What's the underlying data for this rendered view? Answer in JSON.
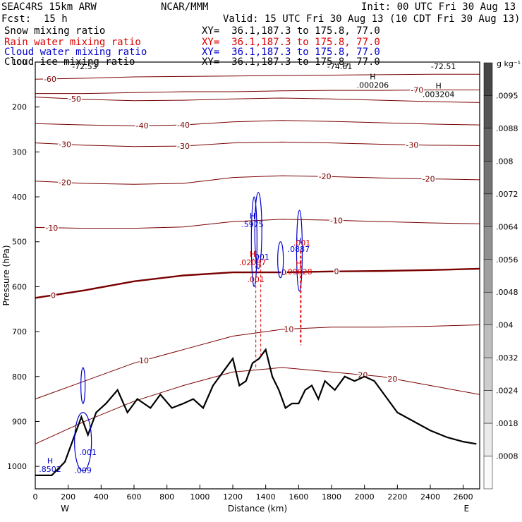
{
  "header": {
    "model": "SEAC4RS 15km ARW",
    "center": "NCAR/MMM",
    "init": "Init: 00 UTC Fri 30 Aug 13",
    "fcst_label": "Fcst:",
    "fcst_value": "15 h",
    "valid": "Valid: 15 UTC Fri 30 Aug 13 (10 CDT Fri 30 Aug 13)"
  },
  "legend": [
    {
      "name": "Snow mixing ratio",
      "xy": "XY=  36.1,187.3 to 175.8, 77.0",
      "color": "#000000"
    },
    {
      "name": "Rain water mixing ratio",
      "xy": "XY=  36.1,187.3 to 175.8, 77.0",
      "color": "#dd0000"
    },
    {
      "name": "Cloud water mixing ratio",
      "xy": "XY=  36.1,187.3 to 175.8, 77.0",
      "color": "#0000cc"
    },
    {
      "name": "Cloud ice mixing ratio",
      "xy": "XY=  36.1,187.3 to 175.8, 77.0",
      "color": "#000000"
    }
  ],
  "colorbar": {
    "unit": "g kg⁻¹",
    "labels": [
      ".0095",
      ".0088",
      ".008",
      ".0072",
      ".0064",
      ".0056",
      ".0048",
      ".004",
      ".0032",
      ".0024",
      ".0018",
      ".0008"
    ]
  },
  "chart_data": {
    "type": "contour-cross-section",
    "xlabel": "Distance (km)",
    "ylabel": "Pressure (hPa)",
    "x_ticks": [
      0,
      200,
      400,
      600,
      800,
      1000,
      1200,
      1400,
      1600,
      1800,
      2000,
      2200,
      2400,
      2600
    ],
    "y_ticks": [
      100,
      200,
      300,
      400,
      500,
      600,
      700,
      800,
      900,
      1000
    ],
    "xlim": [
      0,
      2700
    ],
    "ylim": [
      1050,
      100
    ],
    "x_end_labels": {
      "left": "W",
      "right": "E"
    },
    "temperature_contours": [
      {
        "level": -70,
        "p": [
          170,
          170,
          168,
          166,
          166,
          164,
          163,
          163,
          162,
          162
        ],
        "labels": [
          {
            "text": "-70",
            "x": 2320
          }
        ]
      },
      {
        "level": -60,
        "p": [
          138,
          136,
          133,
          132,
          131,
          130,
          129,
          128,
          127,
          127
        ],
        "labels": [
          {
            "text": "-60",
            "x": 90
          }
        ]
      },
      {
        "level": -50,
        "p": [
          178,
          183,
          186,
          185,
          182,
          180,
          182,
          185,
          188,
          190
        ],
        "labels": [
          {
            "text": "-50",
            "x": 240
          }
        ]
      },
      {
        "level": -40,
        "p": [
          237,
          240,
          242,
          240,
          233,
          230,
          232,
          235,
          238,
          240
        ],
        "labels": [
          {
            "text": "-40",
            "x": 900
          },
          {
            "text": "-40",
            "x": 650
          }
        ]
      },
      {
        "level": -30,
        "p": [
          280,
          285,
          288,
          287,
          280,
          278,
          280,
          283,
          285,
          286
        ],
        "labels": [
          {
            "text": "-30",
            "x": 180
          },
          {
            "text": "-30",
            "x": 900
          },
          {
            "text": "-30",
            "x": 2290
          }
        ]
      },
      {
        "level": -20,
        "p": [
          365,
          370,
          372,
          370,
          357,
          353,
          355,
          358,
          360,
          362
        ],
        "labels": [
          {
            "text": "-20",
            "x": 180
          },
          {
            "text": "-20",
            "x": 1760
          },
          {
            "text": "-20",
            "x": 2390
          }
        ]
      },
      {
        "level": -10,
        "p": [
          468,
          470,
          470,
          467,
          455,
          450,
          452,
          455,
          458,
          460
        ],
        "labels": [
          {
            "text": "-10",
            "x": 100
          },
          {
            "text": "-10",
            "x": 1830
          }
        ]
      },
      {
        "level": 0,
        "p": [
          625,
          608,
          588,
          575,
          568,
          568,
          566,
          565,
          563,
          560
        ],
        "labels": [
          {
            "text": "0",
            "x": 110
          },
          {
            "text": "0",
            "x": 1510
          },
          {
            "text": "0",
            "x": 1830
          }
        ]
      },
      {
        "level": 10,
        "p": [
          850,
          810,
          770,
          740,
          710,
          695,
          690,
          690,
          688,
          685
        ],
        "labels": [
          {
            "text": "10",
            "x": 660
          },
          {
            "text": "10",
            "x": 1540
          }
        ]
      },
      {
        "level": 20,
        "p": [
          950,
          900,
          855,
          820,
          790,
          780,
          790,
          800,
          820,
          840
        ],
        "labels": [
          {
            "text": "20",
            "x": 2170
          },
          {
            "text": "20",
            "x": 1990
          }
        ]
      }
    ],
    "contour_x": [
      0,
      300,
      600,
      900,
      1200,
      1500,
      1800,
      2100,
      2400,
      2700
    ],
    "terrain": {
      "x": [
        0,
        100,
        180,
        240,
        280,
        320,
        370,
        430,
        500,
        560,
        620,
        700,
        760,
        830,
        900,
        960,
        1020,
        1080,
        1140,
        1200,
        1240,
        1280,
        1320,
        1360,
        1400,
        1440,
        1480,
        1520,
        1560,
        1600,
        1640,
        1680,
        1720,
        1760,
        1820,
        1880,
        1940,
        2000,
        2060,
        2120,
        2200,
        2300,
        2400,
        2500,
        2600,
        2680
      ],
      "p": [
        1020,
        1020,
        990,
        930,
        890,
        930,
        880,
        860,
        830,
        880,
        850,
        870,
        840,
        870,
        860,
        850,
        870,
        820,
        790,
        760,
        820,
        810,
        770,
        760,
        740,
        800,
        830,
        870,
        860,
        860,
        830,
        820,
        850,
        810,
        830,
        800,
        810,
        800,
        810,
        840,
        880,
        900,
        920,
        935,
        945,
        950
      ]
    },
    "highs": [
      {
        "x": 90,
        "p": 1000,
        "label": ".8502",
        "color": "#0000cc"
      },
      {
        "x": 1320,
        "p": 455,
        "label": ".5975",
        "color": "#0000cc"
      },
      {
        "x": 1320,
        "p": 540,
        "label": ".02087",
        "color": "#dd0000"
      },
      {
        "x": 1600,
        "p": 510,
        "label": ".0887",
        "color": "#0000cc"
      },
      {
        "x": 1600,
        "p": 560,
        "label": ".00028",
        "color": "#dd0000"
      },
      {
        "x": 2050,
        "p": 145,
        "label": ".000206",
        "color": "#000000"
      },
      {
        "x": 2450,
        "p": 165,
        "label": ".003204",
        "color": "#000000"
      }
    ],
    "top_labels": [
      "-72.53",
      "-74.61",
      "-72.51"
    ],
    "small_labels": [
      {
        "text": ".001",
        "x": 1370,
        "p": 540,
        "color": "#0000cc"
      },
      {
        "text": ".001",
        "x": 1620,
        "p": 508,
        "color": "#dd0000"
      },
      {
        "text": ".001",
        "x": 320,
        "p": 975,
        "color": "#0000cc"
      },
      {
        "text": ".009",
        "x": 290,
        "p": 1015,
        "color": "#0000cc"
      },
      {
        "text": ".001",
        "x": 1340,
        "p": 590,
        "color": "#dd0000"
      }
    ]
  }
}
